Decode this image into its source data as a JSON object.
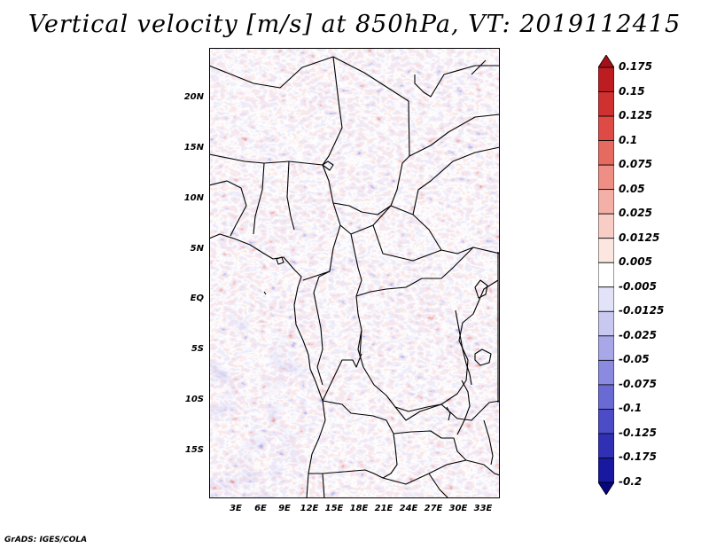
{
  "title": "Vertical velocity [m/s] at 850hPa, VT: 2019112415",
  "credit": "GrADS: IGES/COLA",
  "map": {
    "lat_labels": [
      "20N",
      "15N",
      "10N",
      "5N",
      "EQ",
      "5S",
      "10S",
      "15S"
    ],
    "lon_labels": [
      "3E",
      "6E",
      "9E",
      "12E",
      "15E",
      "18E",
      "21E",
      "24E",
      "27E",
      "30E",
      "33E"
    ],
    "border_color": "#000000",
    "field_colors": {
      "upward": "#d94a4a",
      "downward": "#6a6ad9",
      "neutral": "#ffffff"
    }
  },
  "colorbar": {
    "levels": [
      "0.175",
      "0.15",
      "0.125",
      "0.1",
      "0.075",
      "0.05",
      "0.025",
      "0.0125",
      "0.005",
      "-0.005",
      "-0.0125",
      "-0.025",
      "-0.05",
      "-0.075",
      "-0.1",
      "-0.125",
      "-0.175",
      "-0.2"
    ],
    "colors": [
      "#a50f15",
      "#bd1c20",
      "#cf3030",
      "#de4a44",
      "#e56a60",
      "#ee8e84",
      "#f4b0a6",
      "#f8cdc5",
      "#fbe6e0",
      "#ffffff",
      "#e2e2f8",
      "#c8c8f0",
      "#a8a8e8",
      "#8a8ae0",
      "#6a6ad4",
      "#4c4cc6",
      "#3030b4",
      "#1818a0",
      "#06067e"
    ]
  }
}
